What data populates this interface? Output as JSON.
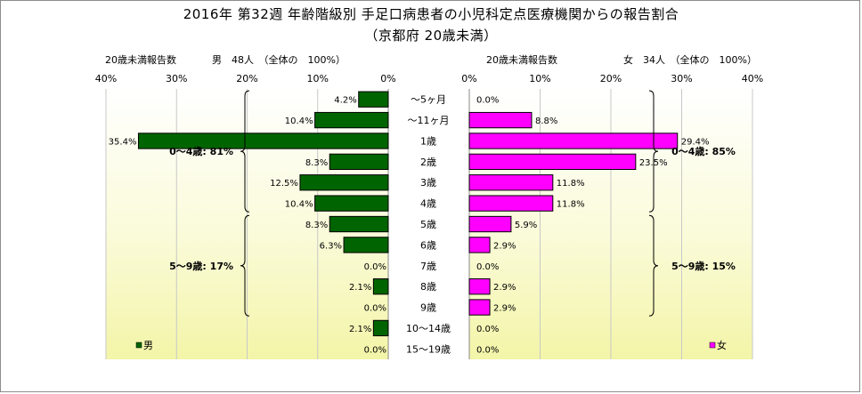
{
  "chart_data": {
    "type": "bar",
    "orientation": "horizontal",
    "layout": "back-to-back",
    "title": "2016年 第32週 年齢階級別 手足口病患者の小児科定点医療機関からの報告割合",
    "subtitle": "（京都府 20歳未満）",
    "categories": [
      "～5ヶ月",
      "～11ヶ月",
      "1歳",
      "2歳",
      "3歳",
      "4歳",
      "5歳",
      "6歳",
      "7歳",
      "8歳",
      "9歳",
      "10～14歳",
      "15～19歳"
    ],
    "axis_ticks": [
      "0%",
      "10%",
      "20%",
      "30%",
      "40%"
    ],
    "xlim": [
      0,
      40
    ],
    "grid": true,
    "series": [
      {
        "name": "男",
        "side": "left",
        "color": "#006400",
        "header_label": "20歳未満報告数",
        "header_total": "男　48人　（全体の　100%）",
        "values": [
          4.2,
          10.4,
          35.4,
          8.3,
          12.5,
          10.4,
          8.3,
          6.3,
          0.0,
          2.1,
          0.0,
          2.1,
          0.0
        ],
        "value_labels": [
          "4.2%",
          "10.4%",
          "35.4%",
          "8.3%",
          "12.5%",
          "10.4%",
          "8.3%",
          "6.3%",
          "0.0%",
          "2.1%",
          "0.0%",
          "2.1%",
          "0.0%"
        ],
        "groups": [
          {
            "label": "0～4歳: 81%",
            "from": 0,
            "to": 5
          },
          {
            "label": "5～9歳: 17%",
            "from": 6,
            "to": 10
          }
        ],
        "legend": "男"
      },
      {
        "name": "女",
        "side": "right",
        "color": "#ff00ff",
        "header_label": "20歳未満報告数",
        "header_total": "女　34人　（全体の　100%）",
        "values": [
          0.0,
          8.8,
          29.4,
          23.5,
          11.8,
          11.8,
          5.9,
          2.9,
          0.0,
          2.9,
          2.9,
          0.0,
          0.0
        ],
        "value_labels": [
          "0.0%",
          "8.8%",
          "29.4%",
          "23.5%",
          "11.8%",
          "11.8%",
          "5.9%",
          "2.9%",
          "0.0%",
          "2.9%",
          "2.9%",
          "0.0%",
          "0.0%"
        ],
        "groups": [
          {
            "label": "0～4歳: 85%",
            "from": 0,
            "to": 5
          },
          {
            "label": "5～9歳: 15%",
            "from": 6,
            "to": 10
          }
        ],
        "legend": "女"
      }
    ]
  }
}
